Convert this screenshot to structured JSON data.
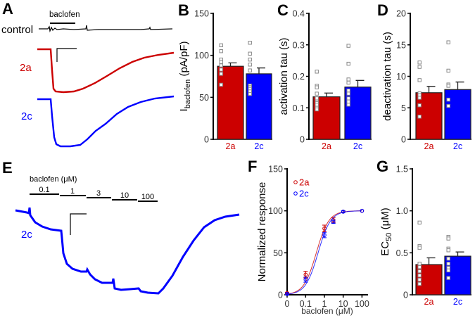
{
  "panel_a": {
    "label": "A",
    "stim_label": "baclofen",
    "control_label": "control",
    "trace_2a_label": "2a",
    "trace_2c_label": "2c"
  },
  "panel_e": {
    "label": "E",
    "stim_label": "baclofen (μM)",
    "concentrations": [
      "0.1",
      "1",
      "3",
      "10",
      "100"
    ],
    "trace_label": "2c"
  },
  "colors": {
    "2a": "#cc0000",
    "2c": "#0000ff"
  },
  "chart_data": [
    {
      "id": "B",
      "type": "bar",
      "panel_label": "B",
      "ylabel_main": "I",
      "ylabel_sub": "baclofen",
      "ylabel_tail": " (pA/pF)",
      "ylim": [
        0,
        150
      ],
      "yticks": [
        "0",
        "50",
        "100",
        "150"
      ],
      "categories": [
        "2a",
        "2c"
      ],
      "values": [
        87,
        78
      ],
      "errors": [
        4,
        7
      ],
      "points": [
        [
          112,
          105,
          95,
          92,
          88,
          83,
          78,
          65
        ],
        [
          115,
          102,
          95,
          89,
          82,
          64,
          62,
          60,
          57,
          54
        ]
      ]
    },
    {
      "id": "C",
      "type": "bar",
      "panel_label": "C",
      "ylabel_main": "activation tau (s)",
      "ylabel_sub": "",
      "ylabel_tail": "",
      "ylim": [
        0,
        0.4
      ],
      "yticks": [
        "0",
        "0.1",
        "0.2",
        "0.3",
        "0.4"
      ],
      "categories": [
        "2a",
        "2c"
      ],
      "values": [
        0.135,
        0.166
      ],
      "errors": [
        0.012,
        0.021
      ],
      "points": [
        [
          0.215,
          0.17,
          0.165,
          0.145,
          0.13,
          0.12,
          0.115,
          0.11,
          0.1,
          0.095
        ],
        [
          0.297,
          0.24,
          0.19,
          0.18,
          0.155,
          0.145,
          0.13,
          0.12,
          0.11
        ]
      ]
    },
    {
      "id": "D",
      "type": "bar",
      "panel_label": "D",
      "ylabel_main": "deactivation tau (s)",
      "ylabel_sub": "",
      "ylabel_tail": "",
      "ylim": [
        0,
        20
      ],
      "yticks": [
        "0",
        "5",
        "10",
        "15",
        "20"
      ],
      "categories": [
        "2a",
        "2c"
      ],
      "values": [
        7.4,
        7.9
      ],
      "errors": [
        1.0,
        1.2
      ],
      "points": [
        [
          12.2,
          11.5,
          9.4,
          7.3,
          7.0,
          6.6,
          5.4,
          3.6
        ],
        [
          15.4,
          10.9,
          8.7,
          8.5,
          6.3,
          5.3
        ]
      ]
    },
    {
      "id": "F",
      "type": "line",
      "panel_label": "F",
      "xlabel": "baclofen (μM)",
      "ylabel": "Normalized response",
      "xscale": "log",
      "xticks": [
        "0",
        "0.1",
        "1",
        "10",
        "100"
      ],
      "ylim": [
        0,
        150
      ],
      "yticks": [
        "0",
        "50",
        "100",
        "150"
      ],
      "legend_position": "top-left",
      "series": [
        {
          "name": "2a",
          "x": [
            0,
            0.1,
            1,
            3,
            10,
            100
          ],
          "y": [
            2,
            24,
            79,
            89,
            99,
            100
          ],
          "err": [
            1,
            4,
            4,
            3,
            1,
            0
          ],
          "fit_ec50": 0.37,
          "fit_hill": 1.3
        },
        {
          "name": "2c",
          "x": [
            0,
            0.1,
            1,
            3,
            10,
            100
          ],
          "y": [
            1,
            18,
            71,
            87,
            99,
            100
          ],
          "err": [
            1,
            3,
            3,
            2,
            1,
            0
          ],
          "fit_ec50": 0.46,
          "fit_hill": 1.3
        }
      ]
    },
    {
      "id": "G",
      "type": "bar",
      "panel_label": "G",
      "ylabel_main": "EC",
      "ylabel_sub": "50",
      "ylabel_tail": " (μM)",
      "ylim": [
        0,
        1.5
      ],
      "yticks": [
        "0",
        "0.5",
        "1.0",
        "1.5"
      ],
      "categories": [
        "2a",
        "2c"
      ],
      "values": [
        0.36,
        0.46
      ],
      "errors": [
        0.08,
        0.05
      ],
      "points": [
        [
          0.86,
          0.58,
          0.56,
          0.37,
          0.33,
          0.28,
          0.23,
          0.18,
          0.13
        ],
        [
          0.69,
          0.67,
          0.55,
          0.53,
          0.43,
          0.37,
          0.32,
          0.29,
          0.2
        ]
      ]
    }
  ]
}
